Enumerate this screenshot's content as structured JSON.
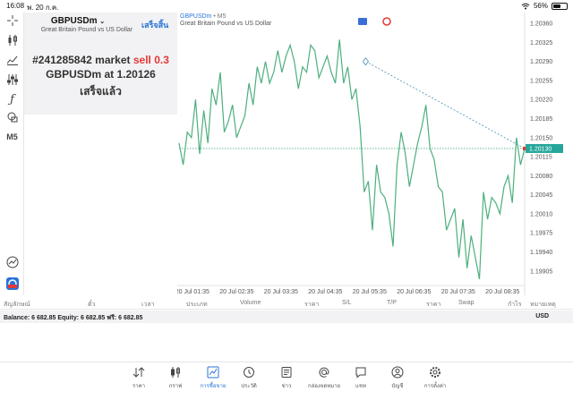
{
  "status": {
    "time": "16:08",
    "date": "พ. 20 ก.ค.",
    "battery": "56%",
    "battery_level": 0.56
  },
  "tools": [
    "crosshair-icon",
    "candles-icon",
    "indicators-icon",
    "settings-sliders-icon",
    "function-icon",
    "shapes-icon"
  ],
  "timeframe_button": "M5",
  "info": {
    "symbol": "GBPUSDm",
    "description": "Great Britain Pound vs US Dollar",
    "done_button": "เสร็จสิ้น",
    "line1_prefix": "#241285842 market",
    "line1_sell": "sell 0.3",
    "line2": "GBPUSDm at 1.20126",
    "line3": "เสร็จแล้ว"
  },
  "chart": {
    "symbol": "GBPUSDm",
    "timeframe": "• M5",
    "description": "Great Britain Pound vs US Dollar",
    "current_price_label": "1.20130",
    "colors": {
      "line": "#4caf7d",
      "price_line": "#4caf7d",
      "trend": "#4a8fb5",
      "price_tag": "#26a69a",
      "grid": "#ebebeb"
    }
  },
  "chart_data": {
    "type": "line",
    "ylim": [
      1.1988,
      1.2037
    ],
    "yticks": [
      "1.20360",
      "1.20325",
      "1.20290",
      "1.20255",
      "1.20220",
      "1.20185",
      "1.20150",
      "1.20115",
      "1.20080",
      "1.20045",
      "1.20010",
      "1.19975",
      "1.19940",
      "1.19905"
    ],
    "xticks": [
      "20 Jul 01:35",
      "20 Jul 02:35",
      "20 Jul 03:35",
      "20 Jul 04:35",
      "20 Jul 05:35",
      "20 Jul 06:35",
      "20 Jul 07:35",
      "20 Jul 08:35"
    ],
    "x_range": [
      0,
      100
    ],
    "current_price": 1.2013,
    "values": [
      1.2014,
      1.201,
      1.2016,
      1.2015,
      1.2022,
      1.2012,
      1.202,
      1.2014,
      1.2024,
      1.2021,
      1.2027,
      1.2016,
      1.2018,
      1.2021,
      1.2015,
      1.2017,
      1.2019,
      1.2025,
      1.2021,
      1.2028,
      1.2025,
      1.2029,
      1.2025,
      1.2027,
      1.2031,
      1.2027,
      1.203,
      1.2032,
      1.2029,
      1.2024,
      1.2028,
      1.2027,
      1.2032,
      1.2031,
      1.2026,
      1.2028,
      1.203,
      1.2027,
      1.2025,
      1.2033,
      1.2025,
      1.2028,
      1.2022,
      1.2024,
      1.2017,
      1.2005,
      1.2007,
      1.1998,
      1.201,
      1.2005,
      1.2004,
      1.2001,
      1.1995,
      1.201,
      1.2016,
      1.2012,
      1.2006,
      1.201,
      1.2014,
      1.2017,
      1.2021,
      1.2013,
      1.2011,
      1.2006,
      1.2005,
      1.1998,
      1.2,
      1.2002,
      1.1993,
      1.2,
      1.1991,
      1.1997,
      1.1993,
      1.1989,
      1.2005,
      1.2,
      1.2004,
      1.2003,
      1.2001,
      1.2006,
      1.2008,
      1.2003,
      1.2015,
      1.201,
      1.2013
    ],
    "trendline": {
      "from": [
        54,
        1.2029
      ],
      "to": [
        100,
        1.2013
      ]
    }
  },
  "table_headers": [
    "สัญลักษณ์",
    "ตั๋ว",
    "เวลา",
    "ประเภท",
    "Volume",
    "ราคา",
    "S/L",
    "T/P",
    "ราคา",
    "Swap",
    "กำไร",
    "หมายเหตุ"
  ],
  "balance": {
    "text": "Balance: 6 682.85 Equity: 6 682.85 ฟรี: 6 682.85",
    "currency": "USD"
  },
  "nav": [
    {
      "label": "ราคา",
      "icon": "quotes-icon"
    },
    {
      "label": "กราฟ",
      "icon": "chart-candles-icon"
    },
    {
      "label": "การซื้อขาย",
      "icon": "trade-icon",
      "active": true
    },
    {
      "label": "ประวัติ",
      "icon": "history-icon"
    },
    {
      "label": "ข่าว",
      "icon": "news-icon"
    },
    {
      "label": "กล่องจดหมาย",
      "icon": "mail-icon"
    },
    {
      "label": "แชท",
      "icon": "chat-icon"
    },
    {
      "label": "บัญชี",
      "icon": "account-icon"
    },
    {
      "label": "การตั้งค่า",
      "icon": "settings-icon"
    }
  ]
}
